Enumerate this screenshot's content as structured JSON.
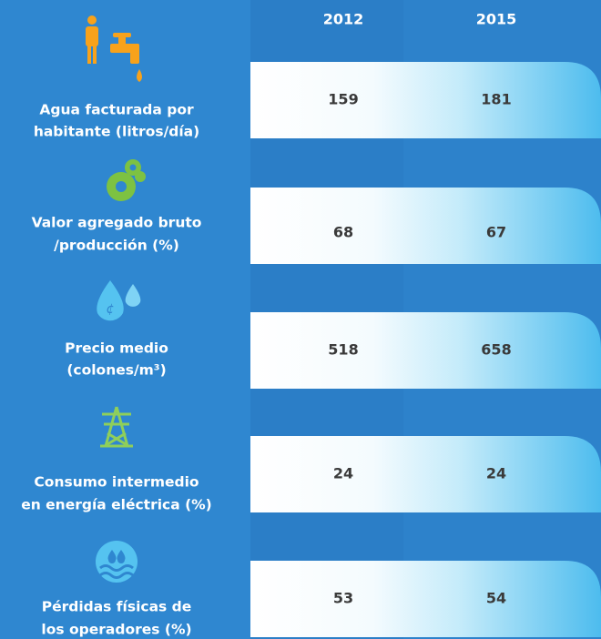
{
  "table": {
    "headers": [
      "2012",
      "2015"
    ],
    "rows": [
      {
        "label": [
          "Agua facturada por",
          "habitante (litros/día)"
        ],
        "values": [
          159,
          181
        ]
      },
      {
        "label": [
          "Valor agregado bruto",
          "/producción (%)"
        ],
        "values": [
          68,
          67
        ]
      },
      {
        "label": [
          "Precio medio",
          "(colones/m³)"
        ],
        "values": [
          518,
          658
        ]
      },
      {
        "label": [
          "Consumo intermedio",
          "en energía eléctrica (%)"
        ],
        "values": [
          24,
          24
        ]
      },
      {
        "label": [
          "Pérdidas físicas de",
          "los operadores (%)"
        ],
        "values": [
          53,
          54
        ]
      }
    ]
  }
}
